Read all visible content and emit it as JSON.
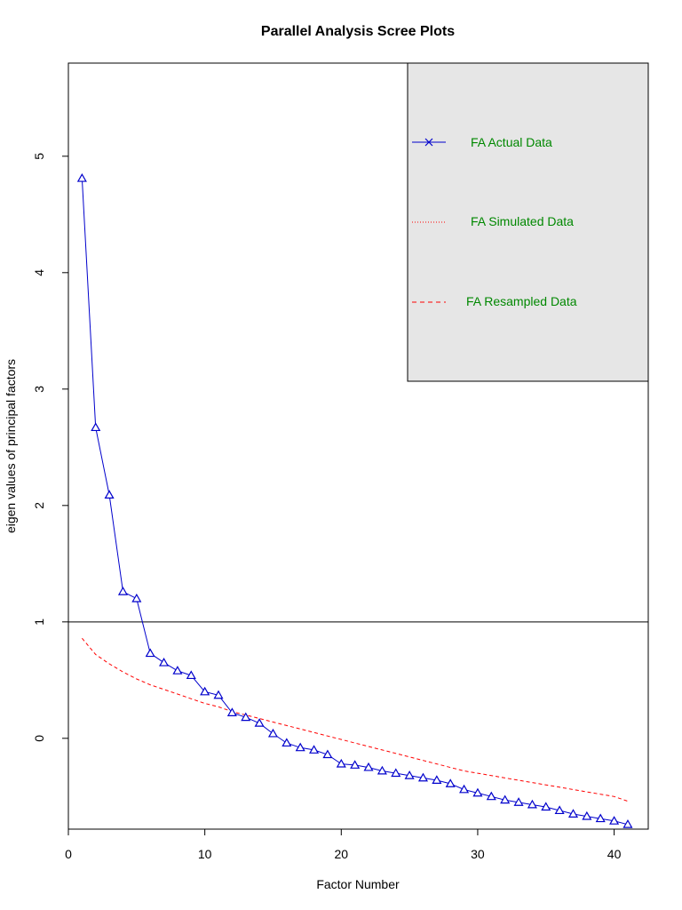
{
  "chart_data": {
    "type": "line",
    "title": "Parallel Analysis Scree Plots",
    "xlabel": "Factor Number",
    "ylabel": "eigen values of principal factors",
    "xlim": [
      0,
      42.5
    ],
    "ylim": [
      -0.78,
      5.8
    ],
    "xticks": [
      0,
      10,
      20,
      30,
      40
    ],
    "yticks": [
      0,
      1,
      2,
      3,
      4,
      5
    ],
    "reference_line": 1,
    "grid": false,
    "legend_position": "top-right",
    "legend": [
      {
        "label": "FA  Actual Data",
        "style": "solid",
        "marker": "x",
        "color": "#0000cc",
        "text_color": "#008800"
      },
      {
        "label": "FA  Simulated Data",
        "style": "dotted",
        "color": "#ff0000",
        "text_color": "#008800"
      },
      {
        "label": "FA  Resampled Data",
        "style": "dashed",
        "color": "#ff0000",
        "text_color": "#008800"
      }
    ],
    "legend_fill": "#e6e6e6",
    "series": [
      {
        "kind": "actual",
        "color": "#0000cc",
        "x": [
          1,
          2,
          3,
          4,
          5,
          6,
          7,
          8,
          9,
          10,
          11,
          12,
          13,
          14,
          15,
          16,
          17,
          18,
          19,
          20,
          21,
          22,
          23,
          24,
          25,
          26,
          27,
          28,
          29,
          30,
          31,
          32,
          33,
          34,
          35,
          36,
          37,
          38,
          39,
          40,
          41
        ],
        "values": [
          4.81,
          2.67,
          2.09,
          1.26,
          1.2,
          0.73,
          0.65,
          0.58,
          0.54,
          0.4,
          0.37,
          0.22,
          0.18,
          0.13,
          0.04,
          -0.04,
          -0.08,
          -0.1,
          -0.14,
          -0.22,
          -0.23,
          -0.25,
          -0.28,
          -0.3,
          -0.32,
          -0.34,
          -0.36,
          -0.39,
          -0.44,
          -0.47,
          -0.5,
          -0.53,
          -0.55,
          -0.57,
          -0.59,
          -0.62,
          -0.65,
          -0.67,
          -0.69,
          -0.71,
          -0.74
        ]
      },
      {
        "kind": "resampled",
        "color": "#ff0000",
        "x": [
          1,
          2,
          3,
          4,
          5,
          6,
          7,
          8,
          9,
          10,
          11,
          12,
          13,
          14,
          15,
          16,
          17,
          18,
          19,
          20,
          21,
          22,
          23,
          24,
          25,
          26,
          27,
          28,
          29,
          30,
          31,
          32,
          33,
          34,
          35,
          36,
          37,
          38,
          39,
          40,
          41
        ],
        "values": [
          0.86,
          0.72,
          0.64,
          0.57,
          0.51,
          0.46,
          0.42,
          0.38,
          0.34,
          0.3,
          0.27,
          0.23,
          0.2,
          0.17,
          0.14,
          0.11,
          0.08,
          0.05,
          0.02,
          -0.01,
          -0.04,
          -0.07,
          -0.1,
          -0.13,
          -0.16,
          -0.19,
          -0.22,
          -0.25,
          -0.28,
          -0.3,
          -0.32,
          -0.34,
          -0.36,
          -0.38,
          -0.4,
          -0.42,
          -0.44,
          -0.46,
          -0.48,
          -0.5,
          -0.54
        ]
      }
    ]
  }
}
